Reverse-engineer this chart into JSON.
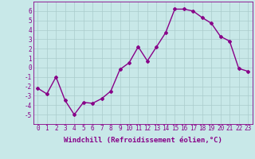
{
  "x": [
    0,
    1,
    2,
    3,
    4,
    5,
    6,
    7,
    8,
    9,
    10,
    11,
    12,
    13,
    14,
    15,
    16,
    17,
    18,
    19,
    20,
    21,
    22,
    23
  ],
  "y": [
    -2.2,
    -2.8,
    -1.0,
    -3.5,
    -5.0,
    -3.7,
    -3.8,
    -3.3,
    -2.5,
    -0.2,
    0.5,
    2.2,
    0.7,
    2.2,
    3.7,
    6.2,
    6.2,
    6.0,
    5.3,
    4.7,
    3.3,
    2.8,
    -0.1,
    -0.4
  ],
  "line_color": "#880088",
  "marker": "D",
  "markersize": 2,
  "linewidth": 1.0,
  "xlabel": "Windchill (Refroidissement éolien,°C)",
  "ylim": [
    -6,
    7
  ],
  "xlim": [
    -0.5,
    23.5
  ],
  "yticks": [
    -5,
    -4,
    -3,
    -2,
    -1,
    0,
    1,
    2,
    3,
    4,
    5,
    6
  ],
  "xticks": [
    0,
    1,
    2,
    3,
    4,
    5,
    6,
    7,
    8,
    9,
    10,
    11,
    12,
    13,
    14,
    15,
    16,
    17,
    18,
    19,
    20,
    21,
    22,
    23
  ],
  "bg_color": "#c8e8e8",
  "grid_color": "#aacccc",
  "tick_color": "#880088",
  "label_color": "#880088",
  "font_size": 5.5,
  "xlabel_fontsize": 6.5
}
